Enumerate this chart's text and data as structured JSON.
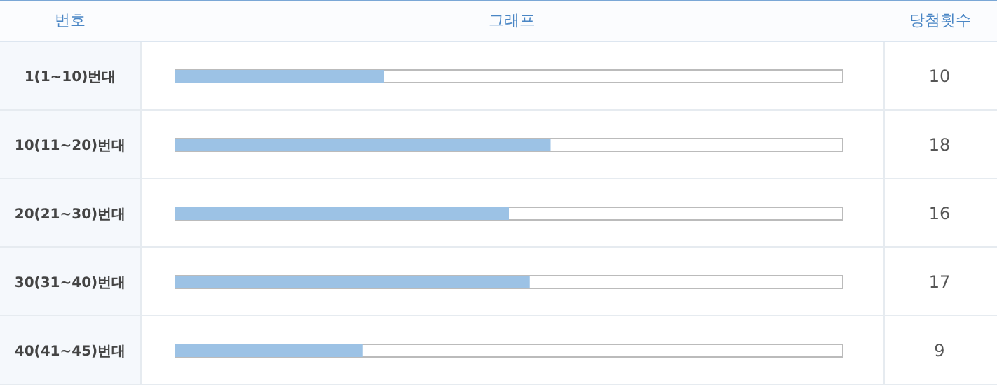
{
  "chart_data": {
    "type": "bar",
    "orientation": "horizontal",
    "ylabel": "번호",
    "xlabel": "그래프",
    "annotations": [
      "당첨횟수"
    ],
    "categories": [
      "1(1~10)번대",
      "10(11~20)번대",
      "20(21~30)번대",
      "30(31~40)번대",
      "40(41~45)번대"
    ],
    "values": [
      10,
      18,
      16,
      17,
      9
    ],
    "color": "#9cc2e5",
    "xlim": [
      0,
      32
    ],
    "data_labels": true,
    "tick_labels": "y"
  }
}
